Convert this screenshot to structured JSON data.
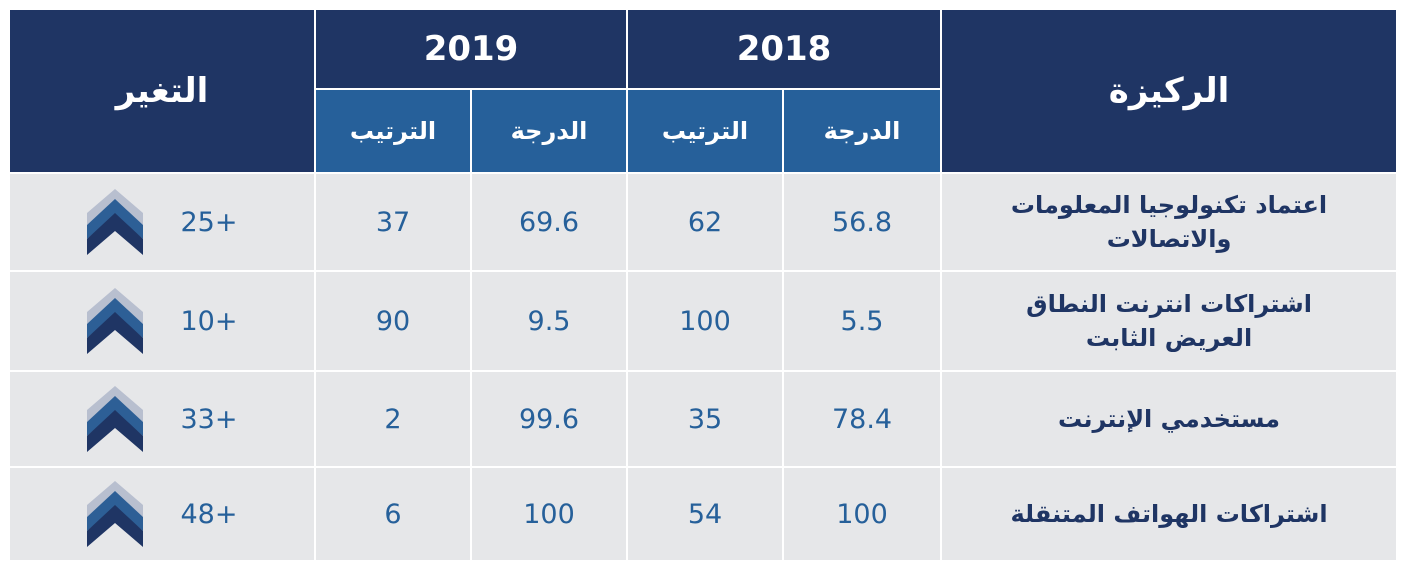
{
  "header": {
    "pillar": "الركيزة",
    "change": "التغير",
    "years": [
      {
        "year": "2018",
        "score": "الدرجة",
        "rank": "الترتيب"
      },
      {
        "year": "2019",
        "score": "الدرجة",
        "rank": "الترتيب"
      }
    ]
  },
  "rows": [
    {
      "pillar": "اعتماد تكنولوجيا المعلومات والاتصالات",
      "y2018": {
        "score": 56.8,
        "rank": 62
      },
      "y2019": {
        "score": 69.6,
        "rank": 37
      },
      "change": "25+"
    },
    {
      "pillar": "اشتراكات انترنت النطاق العريض الثابت",
      "y2018": {
        "score": 5.5,
        "rank": 100
      },
      "y2019": {
        "score": 9.5,
        "rank": 90
      },
      "change": "10+"
    },
    {
      "pillar": "مستخدمي الإنترنت",
      "y2018": {
        "score": 78.4,
        "rank": 35
      },
      "y2019": {
        "score": 99.6,
        "rank": 2
      },
      "change": "33+"
    },
    {
      "pillar": "اشتراكات الهواتف المتنقلة",
      "y2018": {
        "score": 100,
        "rank": 54
      },
      "y2019": {
        "score": 100,
        "rank": 6
      },
      "change": "48+"
    }
  ]
}
